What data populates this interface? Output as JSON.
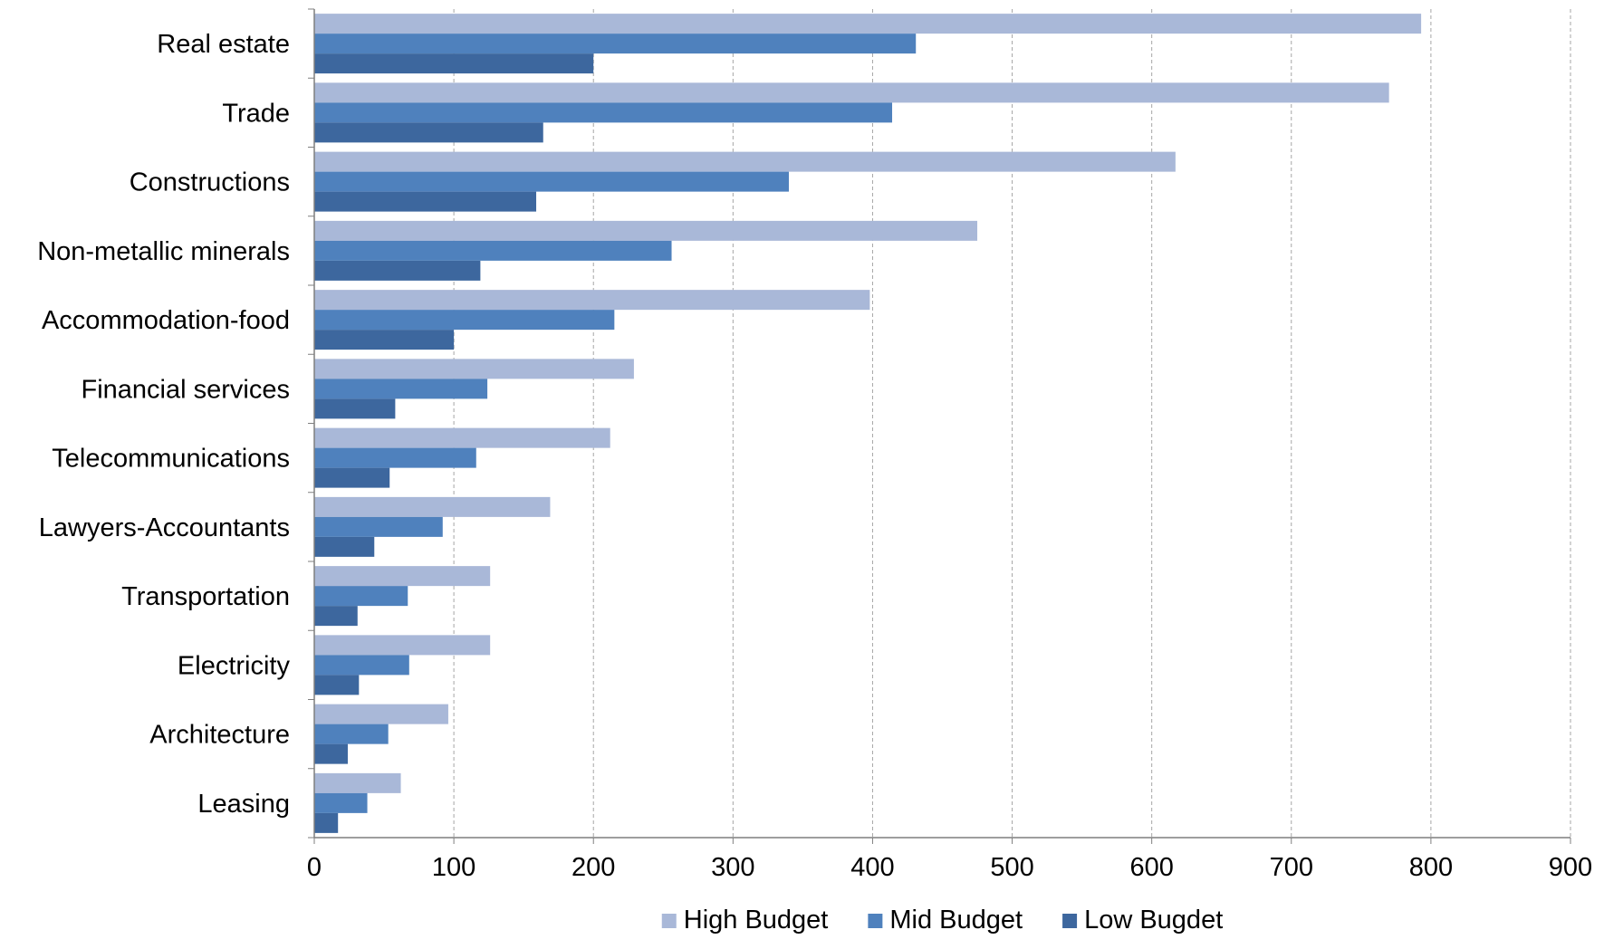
{
  "chart_data": {
    "type": "bar",
    "orientation": "horizontal",
    "categories": [
      "Real estate",
      "Trade",
      "Constructions",
      "Non-metallic minerals",
      "Accommodation-food",
      "Financial services",
      "Telecommunications",
      "Lawyers-Accountants",
      "Transportation",
      "Electricity",
      "Architecture",
      "Leasing"
    ],
    "series": [
      {
        "name": "High Budget",
        "color": "#A9B8D8",
        "values": [
          793,
          770,
          617,
          475,
          398,
          229,
          212,
          169,
          126,
          126,
          96,
          62
        ]
      },
      {
        "name": "Mid Budget",
        "color": "#4F81BD",
        "values": [
          431,
          414,
          340,
          256,
          215,
          124,
          116,
          92,
          67,
          68,
          53,
          38
        ]
      },
      {
        "name": "Low Bugdet",
        "color": "#3D679E",
        "values": [
          200,
          164,
          159,
          119,
          100,
          58,
          54,
          43,
          31,
          32,
          24,
          17
        ]
      }
    ],
    "xlim": [
      0,
      900
    ],
    "x_ticks": [
      "0",
      "100",
      "200",
      "300",
      "400",
      "500",
      "600",
      "700",
      "800",
      "900"
    ],
    "xlabel": "",
    "ylabel": "",
    "grid": "vertical-dashed",
    "legend": "bottom"
  }
}
